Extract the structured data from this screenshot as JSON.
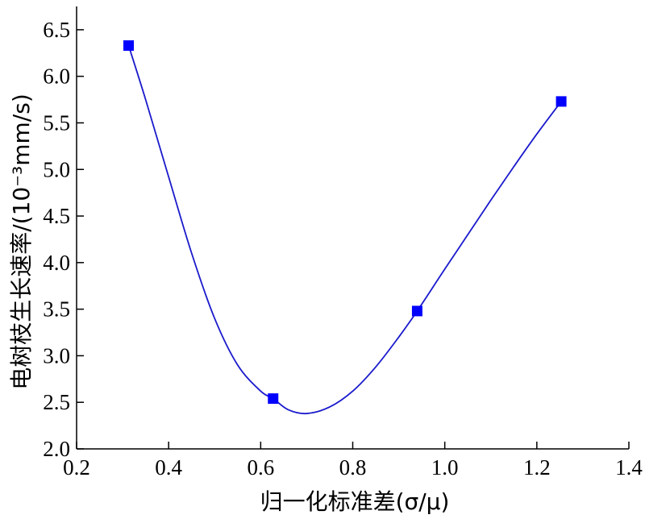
{
  "chart_data": {
    "type": "scatter",
    "title": "",
    "xlabel": "归一化标准差(σ/μ)",
    "ylabel": "电树枝生长速率/(10⁻³mm/s)",
    "xlim": [
      0.2,
      1.4
    ],
    "ylim": [
      2.0,
      6.75
    ],
    "x_ticks": [
      "0.2",
      "0.4",
      "0.6",
      "0.8",
      "1.0",
      "1.2",
      "1.4"
    ],
    "y_ticks": [
      "2.0",
      "2.5",
      "3.0",
      "3.5",
      "4.0",
      "4.5",
      "5.0",
      "5.5",
      "6.0",
      "6.5"
    ],
    "grid": false,
    "colors": {
      "marker": "#0000ff",
      "curve": "#1a1acc",
      "axis": "#000000"
    },
    "series": [
      {
        "points": [
          {
            "x": 0.313,
            "y": 6.33
          },
          {
            "x": 0.627,
            "y": 2.54
          },
          {
            "x": 0.94,
            "y": 3.48
          },
          {
            "x": 1.253,
            "y": 5.73
          }
        ],
        "fit_curve": [
          {
            "x": 0.313,
            "y": 6.33
          },
          {
            "x": 0.35,
            "y": 5.75
          },
          {
            "x": 0.4,
            "y": 4.92
          },
          {
            "x": 0.45,
            "y": 4.1
          },
          {
            "x": 0.5,
            "y": 3.4
          },
          {
            "x": 0.55,
            "y": 2.9
          },
          {
            "x": 0.6,
            "y": 2.62
          },
          {
            "x": 0.627,
            "y": 2.54
          },
          {
            "x": 0.66,
            "y": 2.42
          },
          {
            "x": 0.7,
            "y": 2.38
          },
          {
            "x": 0.75,
            "y": 2.45
          },
          {
            "x": 0.8,
            "y": 2.62
          },
          {
            "x": 0.85,
            "y": 2.88
          },
          {
            "x": 0.9,
            "y": 3.2
          },
          {
            "x": 0.94,
            "y": 3.48
          },
          {
            "x": 1.0,
            "y": 3.93
          },
          {
            "x": 1.05,
            "y": 4.3
          },
          {
            "x": 1.1,
            "y": 4.67
          },
          {
            "x": 1.15,
            "y": 5.03
          },
          {
            "x": 1.2,
            "y": 5.38
          },
          {
            "x": 1.253,
            "y": 5.73
          }
        ]
      }
    ]
  }
}
